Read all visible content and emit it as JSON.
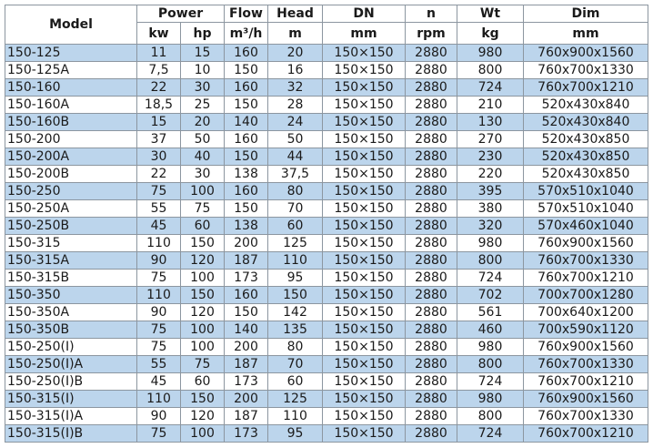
{
  "header": {
    "model": "Model",
    "power": "Power",
    "kw": "kw",
    "hp": "hp",
    "flow": "Flow",
    "flow_unit": "m³/h",
    "head": "Head",
    "head_unit": "m",
    "dn": "DN",
    "dn_unit": "mm",
    "n": "n",
    "n_unit": "rpm",
    "wt": "Wt",
    "wt_unit": "kg",
    "dim": "Dim",
    "dim_unit": "mm"
  },
  "colors": {
    "alt_row": "#bcd5ec",
    "border": "#8c96a0"
  },
  "rows": [
    [
      "150-125",
      "11",
      "15",
      "160",
      "20",
      "150×150",
      "2880",
      "980",
      "760x900x1560"
    ],
    [
      "150-125A",
      "7,5",
      "10",
      "150",
      "16",
      "150×150",
      "2880",
      "800",
      "760x700x1330"
    ],
    [
      "150-160",
      "22",
      "30",
      "160",
      "32",
      "150×150",
      "2880",
      "724",
      "760x700x1210"
    ],
    [
      "150-160A",
      "18,5",
      "25",
      "150",
      "28",
      "150×150",
      "2880",
      "210",
      "520x430x840"
    ],
    [
      "150-160B",
      "15",
      "20",
      "140",
      "24",
      "150×150",
      "2880",
      "130",
      "520x430x840"
    ],
    [
      "150-200",
      "37",
      "50",
      "160",
      "50",
      "150×150",
      "2880",
      "270",
      "520x430x850"
    ],
    [
      "150-200A",
      "30",
      "40",
      "150",
      "44",
      "150×150",
      "2880",
      "230",
      "520x430x850"
    ],
    [
      "150-200B",
      "22",
      "30",
      "138",
      "37,5",
      "150×150",
      "2880",
      "220",
      "520x430x850"
    ],
    [
      "150-250",
      "75",
      "100",
      "160",
      "80",
      "150×150",
      "2880",
      "395",
      "570x510x1040"
    ],
    [
      "150-250A",
      "55",
      "75",
      "150",
      "70",
      "150×150",
      "2880",
      "380",
      "570x510x1040"
    ],
    [
      "150-250B",
      "45",
      "60",
      "138",
      "60",
      "150×150",
      "2880",
      "320",
      "570x460x1040"
    ],
    [
      "150-315",
      "110",
      "150",
      "200",
      "125",
      "150×150",
      "2880",
      "980",
      "760x900x1560"
    ],
    [
      "150-315A",
      "90",
      "120",
      "187",
      "110",
      "150×150",
      "2880",
      "800",
      "760x700x1330"
    ],
    [
      "150-315B",
      "75",
      "100",
      "173",
      "95",
      "150×150",
      "2880",
      "724",
      "760x700x1210"
    ],
    [
      "150-350",
      "110",
      "150",
      "160",
      "150",
      "150×150",
      "2880",
      "702",
      "700x700x1280"
    ],
    [
      "150-350A",
      "90",
      "120",
      "150",
      "142",
      "150×150",
      "2880",
      "561",
      "700x640x1200"
    ],
    [
      "150-350B",
      "75",
      "100",
      "140",
      "135",
      "150×150",
      "2880",
      "460",
      "700x590x1120"
    ],
    [
      "150-250(I)",
      "75",
      "100",
      "200",
      "80",
      "150×150",
      "2880",
      "980",
      "760x900x1560"
    ],
    [
      "150-250(I)A",
      "55",
      "75",
      "187",
      "70",
      "150×150",
      "2880",
      "800",
      "760x700x1330"
    ],
    [
      "150-250(I)B",
      "45",
      "60",
      "173",
      "60",
      "150×150",
      "2880",
      "724",
      "760x700x1210"
    ],
    [
      "150-315(I)",
      "110",
      "150",
      "200",
      "125",
      "150×150",
      "2880",
      "980",
      "760x900x1560"
    ],
    [
      "150-315(I)A",
      "90",
      "120",
      "187",
      "110",
      "150×150",
      "2880",
      "800",
      "760x700x1330"
    ],
    [
      "150-315(I)B",
      "75",
      "100",
      "173",
      "95",
      "150×150",
      "2880",
      "724",
      "760x700x1210"
    ]
  ]
}
